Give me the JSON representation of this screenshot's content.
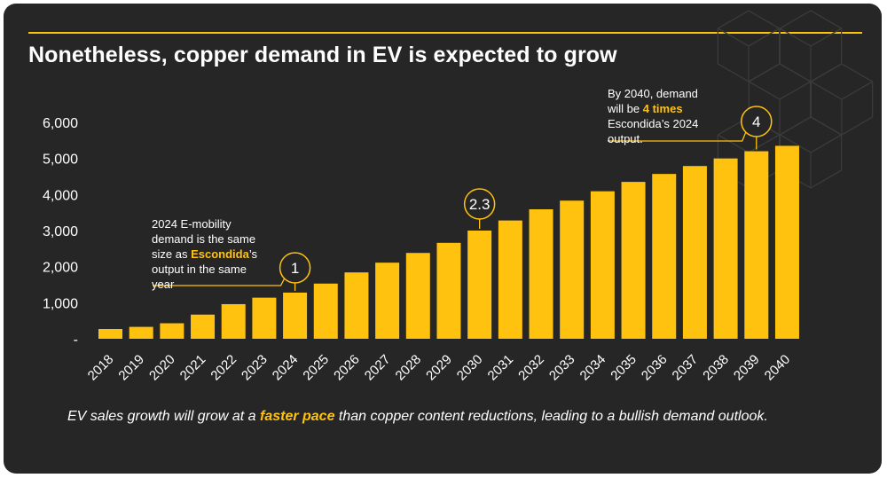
{
  "title": "Nonetheless, copper demand in EV is expected to grow",
  "accent_color": "#ffc20e",
  "background_color": "#262626",
  "chart_data": {
    "type": "bar",
    "title": "Nonetheless, copper demand in EV is expected to grow",
    "xlabel": "",
    "ylabel": "",
    "ylim": [
      0,
      6000
    ],
    "yticks": [
      "-",
      "1,000",
      "2,000",
      "3,000",
      "4,000",
      "5,000",
      "6,000"
    ],
    "grid": false,
    "categories": [
      "2018",
      "2019",
      "2020",
      "2021",
      "2022",
      "2023",
      "2024",
      "2025",
      "2026",
      "2027",
      "2028",
      "2029",
      "2030",
      "2031",
      "2032",
      "2033",
      "2034",
      "2035",
      "2036",
      "2037",
      "2038",
      "2039",
      "2040"
    ],
    "values": [
      270,
      330,
      430,
      670,
      960,
      1140,
      1280,
      1530,
      1840,
      2110,
      2380,
      2660,
      3000,
      3280,
      3590,
      3830,
      4090,
      4350,
      4570,
      4790,
      5000,
      5200,
      5350
    ],
    "bar_color": "#ffc20e",
    "markers": [
      {
        "label": "1",
        "category": "2024"
      },
      {
        "label": "2.3",
        "category": "2030"
      },
      {
        "label": "4",
        "category": "2039"
      }
    ]
  },
  "annotations": {
    "a2024": {
      "line1": "2024 E-mobility",
      "line2": "demand is the same",
      "line3_pre": "size as ",
      "line3_bold": "Escondida",
      "line3_post": "’s",
      "line4": "output in the same",
      "line5": "year"
    },
    "a2040": {
      "line1": "By 2040, demand",
      "line2_pre": "will be ",
      "line2_bold": "4 times",
      "line3": "Escondida’s 2024",
      "line4": "output."
    }
  },
  "footer": {
    "part1": "EV sales growth will grow at a ",
    "bold": "faster pace",
    "part2": " than copper content reductions, leading to a bullish demand outlook."
  }
}
